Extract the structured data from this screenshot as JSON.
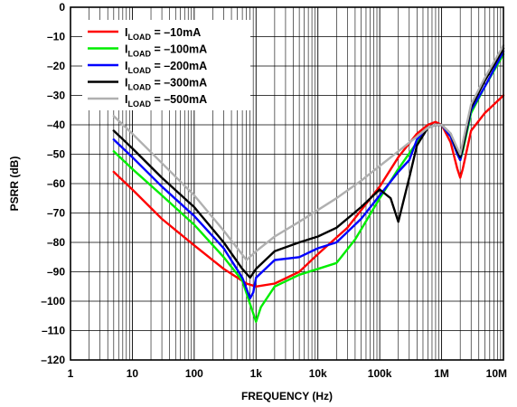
{
  "chart_data": {
    "type": "line",
    "xlabel": "FREQUENCY (Hz)",
    "ylabel": "PSRR (dB)",
    "x_scale": "log",
    "xlim": [
      1,
      10000000
    ],
    "ylim": [
      -120,
      0
    ],
    "grid": true,
    "legend_position": "top-left",
    "x_ticks": [
      {
        "value": 1,
        "label": "1"
      },
      {
        "value": 10,
        "label": "10"
      },
      {
        "value": 100,
        "label": "100"
      },
      {
        "value": 1000,
        "label": "1k"
      },
      {
        "value": 10000,
        "label": "10k"
      },
      {
        "value": 100000,
        "label": "100k"
      },
      {
        "value": 1000000,
        "label": "1M"
      },
      {
        "value": 10000000,
        "label": "10M"
      }
    ],
    "y_ticks": [
      {
        "value": 0,
        "label": "0"
      },
      {
        "value": -10,
        "label": "–10"
      },
      {
        "value": -20,
        "label": "–20"
      },
      {
        "value": -30,
        "label": "–30"
      },
      {
        "value": -40,
        "label": "–40"
      },
      {
        "value": -50,
        "label": "–50"
      },
      {
        "value": -60,
        "label": "–60"
      },
      {
        "value": -70,
        "label": "–70"
      },
      {
        "value": -80,
        "label": "–80"
      },
      {
        "value": -90,
        "label": "–90"
      },
      {
        "value": -100,
        "label": "–100"
      },
      {
        "value": -110,
        "label": "–110"
      },
      {
        "value": -120,
        "label": "–120"
      }
    ],
    "series": [
      {
        "name_main": "I",
        "name_sub": "LOAD",
        "name_value": " = –10mA",
        "color": "#ff0000",
        "points": [
          [
            5,
            -56
          ],
          [
            10,
            -62
          ],
          [
            30,
            -72
          ],
          [
            100,
            -81
          ],
          [
            300,
            -89
          ],
          [
            700,
            -94
          ],
          [
            1000,
            -95
          ],
          [
            2000,
            -94
          ],
          [
            5000,
            -90
          ],
          [
            10000,
            -84
          ],
          [
            30000,
            -75
          ],
          [
            100000,
            -61
          ],
          [
            200000,
            -51
          ],
          [
            400000,
            -43
          ],
          [
            600000,
            -40
          ],
          [
            800000,
            -39
          ],
          [
            1000000,
            -40
          ],
          [
            1400000,
            -46
          ],
          [
            1800000,
            -55
          ],
          [
            2000000,
            -58
          ],
          [
            2200000,
            -55
          ],
          [
            3000000,
            -42
          ],
          [
            5000000,
            -36
          ],
          [
            10000000,
            -30
          ]
        ]
      },
      {
        "name_main": "I",
        "name_sub": "LOAD",
        "name_value": " = –100mA",
        "color": "#00ee00",
        "points": [
          [
            5,
            -49
          ],
          [
            10,
            -55
          ],
          [
            30,
            -64
          ],
          [
            100,
            -74
          ],
          [
            300,
            -85
          ],
          [
            600,
            -93
          ],
          [
            800,
            -101
          ],
          [
            1000,
            -107
          ],
          [
            1200,
            -102
          ],
          [
            2000,
            -95
          ],
          [
            5000,
            -91
          ],
          [
            10000,
            -89
          ],
          [
            20000,
            -87
          ],
          [
            40000,
            -79
          ],
          [
            100000,
            -65
          ],
          [
            200000,
            -55
          ],
          [
            400000,
            -46
          ],
          [
            600000,
            -41
          ],
          [
            800000,
            -40
          ],
          [
            1000000,
            -40
          ],
          [
            1400000,
            -44
          ],
          [
            1800000,
            -50
          ],
          [
            2000000,
            -52
          ],
          [
            2200000,
            -49
          ],
          [
            3000000,
            -36
          ],
          [
            5000000,
            -27
          ],
          [
            10000000,
            -16
          ]
        ]
      },
      {
        "name_main": "I",
        "name_sub": "LOAD",
        "name_value": " = –200mA",
        "color": "#0000ff",
        "points": [
          [
            5,
            -45
          ],
          [
            10,
            -51
          ],
          [
            30,
            -61
          ],
          [
            100,
            -71
          ],
          [
            300,
            -82
          ],
          [
            600,
            -92
          ],
          [
            800,
            -99
          ],
          [
            900,
            -97
          ],
          [
            1000,
            -92
          ],
          [
            2000,
            -86
          ],
          [
            5000,
            -85
          ],
          [
            10000,
            -82
          ],
          [
            20000,
            -80
          ],
          [
            50000,
            -72
          ],
          [
            100000,
            -64
          ],
          [
            200000,
            -56
          ],
          [
            300000,
            -52
          ],
          [
            400000,
            -45
          ],
          [
            600000,
            -41
          ],
          [
            800000,
            -40
          ],
          [
            1000000,
            -40
          ],
          [
            1400000,
            -44
          ],
          [
            1800000,
            -50
          ],
          [
            2000000,
            -52
          ],
          [
            2200000,
            -48
          ],
          [
            3000000,
            -35
          ],
          [
            5000000,
            -27
          ],
          [
            10000000,
            -15
          ]
        ]
      },
      {
        "name_main": "I",
        "name_sub": "LOAD",
        "name_value": " = –300mA",
        "color": "#000000",
        "points": [
          [
            5,
            -42
          ],
          [
            10,
            -48
          ],
          [
            30,
            -58
          ],
          [
            100,
            -68
          ],
          [
            300,
            -80
          ],
          [
            600,
            -89
          ],
          [
            800,
            -92
          ],
          [
            1000,
            -89
          ],
          [
            2000,
            -83
          ],
          [
            5000,
            -80
          ],
          [
            10000,
            -78
          ],
          [
            20000,
            -75
          ],
          [
            50000,
            -68
          ],
          [
            100000,
            -62
          ],
          [
            150000,
            -65
          ],
          [
            200000,
            -73
          ],
          [
            300000,
            -58
          ],
          [
            400000,
            -47
          ],
          [
            600000,
            -41
          ],
          [
            800000,
            -40
          ],
          [
            1000000,
            -40
          ],
          [
            1400000,
            -43
          ],
          [
            1800000,
            -49
          ],
          [
            2000000,
            -51
          ],
          [
            2200000,
            -48
          ],
          [
            3000000,
            -34
          ],
          [
            5000000,
            -25
          ],
          [
            10000000,
            -14
          ]
        ]
      },
      {
        "name_main": "I",
        "name_sub": "LOAD",
        "name_value": " = –500mA",
        "color": "#b0b0b0",
        "points": [
          [
            5,
            -37
          ],
          [
            10,
            -43
          ],
          [
            30,
            -53
          ],
          [
            100,
            -64
          ],
          [
            300,
            -76
          ],
          [
            700,
            -86
          ],
          [
            1000,
            -83
          ],
          [
            2000,
            -78
          ],
          [
            5000,
            -73
          ],
          [
            10000,
            -69
          ],
          [
            20000,
            -65
          ],
          [
            50000,
            -59
          ],
          [
            100000,
            -54
          ],
          [
            200000,
            -49
          ],
          [
            400000,
            -44
          ],
          [
            600000,
            -41
          ],
          [
            800000,
            -40
          ],
          [
            1000000,
            -40
          ],
          [
            1400000,
            -43
          ],
          [
            1800000,
            -48
          ],
          [
            2000000,
            -50
          ],
          [
            2200000,
            -46
          ],
          [
            3000000,
            -33
          ],
          [
            5000000,
            -24
          ],
          [
            10000000,
            -13
          ]
        ]
      }
    ]
  }
}
